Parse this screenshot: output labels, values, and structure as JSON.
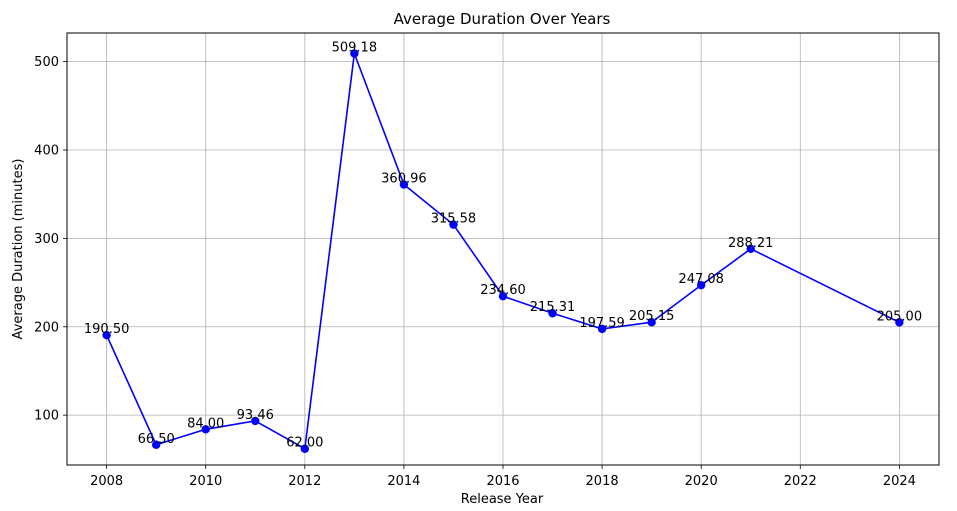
{
  "chart_data": {
    "type": "line",
    "title": "Average Duration Over Years",
    "xlabel": "Release Year",
    "ylabel": "Average Duration (minutes)",
    "xlim": [
      2007.2,
      2024.8
    ],
    "ylim": [
      43.6,
      532.4
    ],
    "xticks": [
      2008,
      2010,
      2012,
      2014,
      2016,
      2018,
      2020,
      2022,
      2024
    ],
    "yticks": [
      100,
      200,
      300,
      400,
      500
    ],
    "grid": true,
    "series": [
      {
        "color": "#0000ff",
        "marker": "circle",
        "x": [
          2008,
          2009,
          2010,
          2011,
          2012,
          2013,
          2014,
          2015,
          2016,
          2017,
          2018,
          2019,
          2020,
          2021,
          2024
        ],
        "y": [
          190.5,
          66.5,
          84.0,
          93.46,
          62.0,
          509.18,
          360.96,
          315.58,
          234.6,
          215.31,
          197.59,
          205.15,
          247.08,
          288.21,
          205.0
        ],
        "labels": [
          "190.50",
          "66.50",
          "84.00",
          "93.46",
          "62.00",
          "509.18",
          "360.96",
          "315.58",
          "234.60",
          "215.31",
          "197.59",
          "205.15",
          "247.08",
          "288.21",
          "205.00"
        ]
      }
    ]
  }
}
